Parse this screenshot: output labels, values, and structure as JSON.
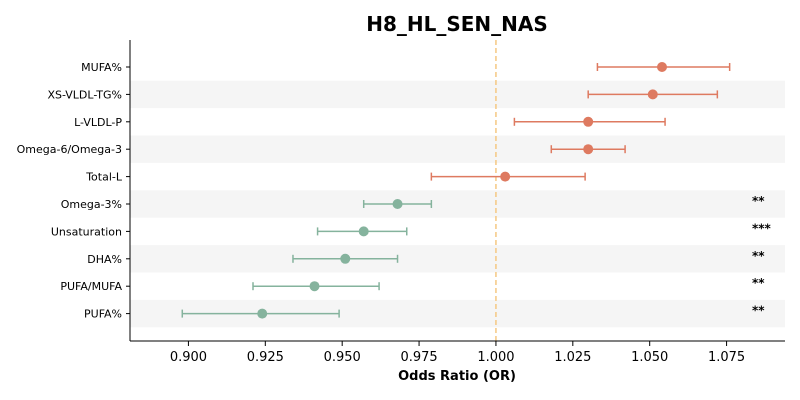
{
  "chart_data": {
    "type": "scatter",
    "subtype": "forest-plot",
    "title": "H8_HL_SEN_NAS",
    "xlabel": "Odds Ratio (OR)",
    "ylabel": "",
    "xlim": [
      0.881,
      1.094
    ],
    "xticks": [
      "0.900",
      "0.925",
      "0.950",
      "0.975",
      "1.000",
      "1.025",
      "1.050",
      "1.075"
    ],
    "reference_line": 1.0,
    "reference_line_color": "#f5c882",
    "band_color": "#f5f5f5",
    "colors": {
      "positive": "#de7a60",
      "negative": "#85b39d"
    },
    "legend": "none",
    "grid": false,
    "rows": [
      {
        "label": "MUFA%",
        "or": 1.054,
        "lower": 1.033,
        "upper": 1.076,
        "sig": "",
        "direction": "positive"
      },
      {
        "label": "XS-VLDL-TG%",
        "or": 1.051,
        "lower": 1.03,
        "upper": 1.072,
        "sig": "",
        "direction": "positive"
      },
      {
        "label": "L-VLDL-P",
        "or": 1.03,
        "lower": 1.006,
        "upper": 1.055,
        "sig": "",
        "direction": "positive"
      },
      {
        "label": "Omega-6/Omega-3",
        "or": 1.03,
        "lower": 1.018,
        "upper": 1.042,
        "sig": "",
        "direction": "positive"
      },
      {
        "label": "Total-L",
        "or": 1.003,
        "lower": 0.979,
        "upper": 1.029,
        "sig": "",
        "direction": "positive"
      },
      {
        "label": "Omega-3%",
        "or": 0.968,
        "lower": 0.957,
        "upper": 0.979,
        "sig": "**",
        "direction": "negative"
      },
      {
        "label": "Unsaturation",
        "or": 0.957,
        "lower": 0.942,
        "upper": 0.971,
        "sig": "***",
        "direction": "negative"
      },
      {
        "label": "DHA%",
        "or": 0.951,
        "lower": 0.934,
        "upper": 0.968,
        "sig": "**",
        "direction": "negative"
      },
      {
        "label": "PUFA/MUFA",
        "or": 0.941,
        "lower": 0.921,
        "upper": 0.962,
        "sig": "**",
        "direction": "negative"
      },
      {
        "label": "PUFA%",
        "or": 0.924,
        "lower": 0.898,
        "upper": 0.949,
        "sig": "**",
        "direction": "negative"
      }
    ]
  }
}
